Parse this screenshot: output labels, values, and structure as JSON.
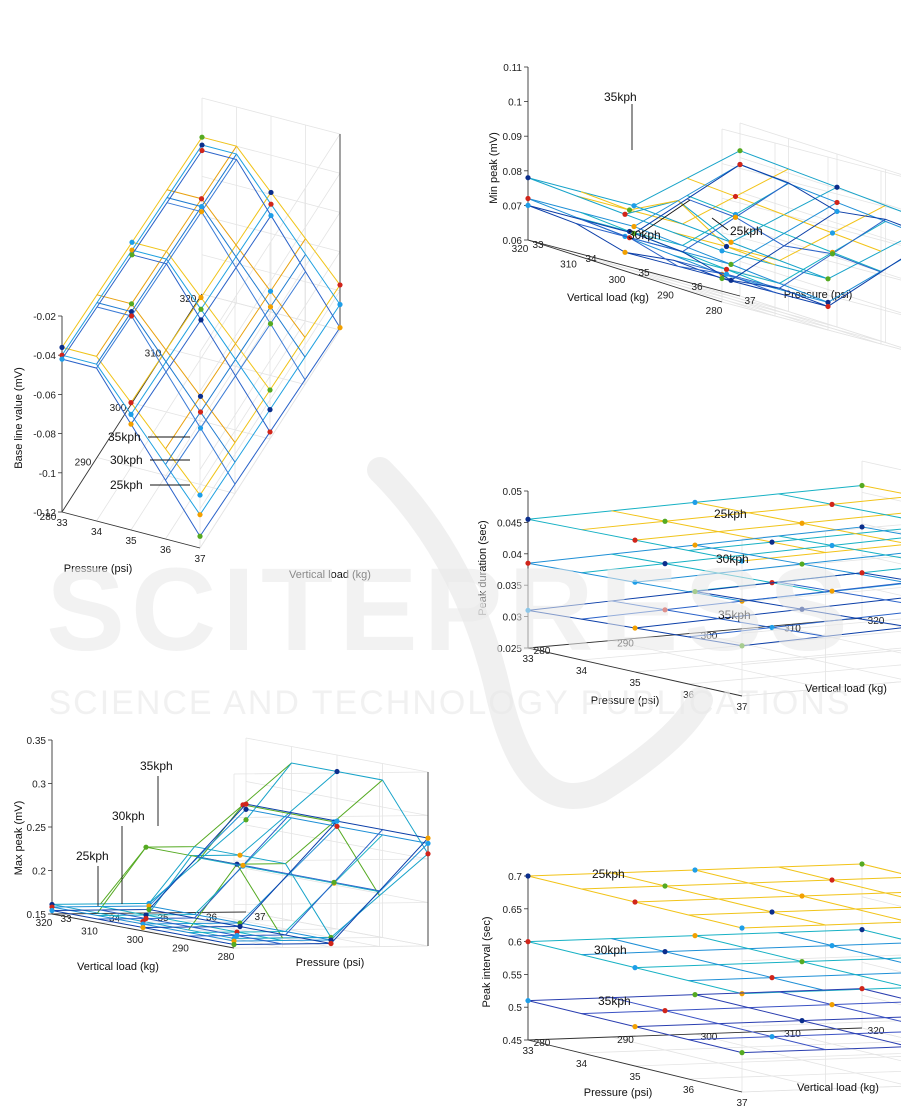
{
  "watermark": {
    "line1": "SCITEPRESS",
    "line2": "SCIENCE AND TECHNOLOGY PUBLICATIONS"
  },
  "chart_data": [
    {
      "id": "base_line",
      "type": "line3d",
      "zlabel": "Base line value (mV)",
      "xlabel": "Pressure (psi)",
      "ylabel": "Vertical load (kg)",
      "x_ticks": [
        "33",
        "34",
        "35",
        "36",
        "37"
      ],
      "y_ticks": [
        "280",
        "290",
        "300",
        "310",
        "320"
      ],
      "z_ticks": [
        "-0.12",
        "-0.1",
        "-0.08",
        "-0.06",
        "-0.04",
        "-0.02"
      ],
      "annotations": [
        "35kph",
        "30kph",
        "25kph"
      ],
      "series": [
        {
          "name": "35kph"
        },
        {
          "name": "30kph"
        },
        {
          "name": "25kph"
        }
      ]
    },
    {
      "id": "min_peak",
      "type": "line3d",
      "zlabel": "Min peak (mV)",
      "xlabel": "Vertical load (kg)",
      "ylabel": "Pressure (psi)",
      "x_ticks": [
        "320",
        "310",
        "300",
        "290",
        "280"
      ],
      "y_ticks": [
        "33",
        "34",
        "35",
        "36",
        "37"
      ],
      "z_ticks": [
        "0.06",
        "0.07",
        "0.08",
        "0.09",
        "0.1",
        "0.11"
      ],
      "annotations": [
        "35kph",
        "30kph",
        "25kph"
      ],
      "series": [
        {
          "name": "35kph"
        },
        {
          "name": "30kph"
        },
        {
          "name": "25kph"
        }
      ]
    },
    {
      "id": "peak_duration",
      "type": "line3d",
      "zlabel": "Peak duration (sec)",
      "xlabel": "Pressure (psi)",
      "ylabel": "Vertical load (kg)",
      "x_ticks": [
        "33",
        "34",
        "35",
        "36",
        "37"
      ],
      "y_ticks": [
        "280",
        "290",
        "300",
        "310",
        "320"
      ],
      "z_ticks": [
        "0.025",
        "0.03",
        "0.035",
        "0.04",
        "0.045",
        "0.05"
      ],
      "annotations": [
        "25kph",
        "30kph",
        "35kph"
      ],
      "series": [
        {
          "name": "25kph"
        },
        {
          "name": "30kph"
        },
        {
          "name": "35kph"
        }
      ]
    },
    {
      "id": "max_peak",
      "type": "line3d",
      "zlabel": "Max peak (mV)",
      "xlabel": "Vertical load (kg)",
      "ylabel": "Pressure (psi)",
      "x_ticks": [
        "320",
        "310",
        "300",
        "290",
        "280"
      ],
      "y_ticks": [
        "33",
        "34",
        "35",
        "36",
        "37"
      ],
      "z_ticks": [
        "0.15",
        "0.2",
        "0.25",
        "0.3",
        "0.35"
      ],
      "annotations": [
        "35kph",
        "30kph",
        "25kph"
      ],
      "series": [
        {
          "name": "35kph"
        },
        {
          "name": "30kph"
        },
        {
          "name": "25kph"
        }
      ]
    },
    {
      "id": "peak_interval",
      "type": "line3d",
      "zlabel": "Peak interval (sec)",
      "xlabel": "Pressure (psi)",
      "ylabel": "Vertical load (kg)",
      "x_ticks": [
        "33",
        "34",
        "35",
        "36",
        "37"
      ],
      "y_ticks": [
        "280",
        "290",
        "300",
        "310",
        "320"
      ],
      "z_ticks": [
        "0.45",
        "0.5",
        "0.55",
        "0.6",
        "0.65",
        "0.7"
      ],
      "annotations": [
        "25kph",
        "30kph",
        "35kph"
      ],
      "series": [
        {
          "name": "25kph",
          "z": 0.7
        },
        {
          "name": "30kph",
          "z": 0.6
        },
        {
          "name": "35kph",
          "z": 0.51
        }
      ]
    }
  ]
}
